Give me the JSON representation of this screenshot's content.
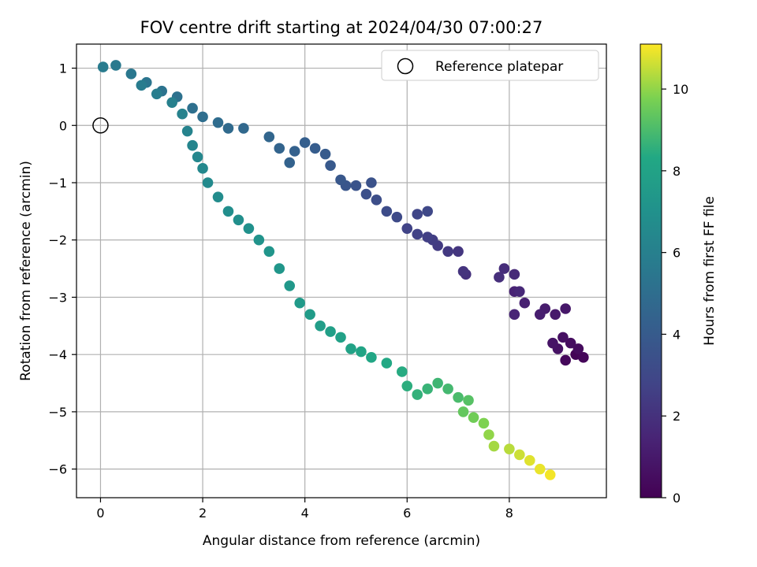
{
  "chart_data": {
    "type": "scatter",
    "title": "FOV centre drift starting at 2024/04/30 07:00:27",
    "xlabel": "Angular distance from reference (arcmin)",
    "ylabel": "Rotation from reference (arcmin)",
    "xlim": [
      -0.47,
      9.9
    ],
    "ylim": [
      -6.5,
      1.42
    ],
    "xticks": [
      0,
      2,
      4,
      6,
      8
    ],
    "yticks": [
      1,
      0,
      -1,
      -2,
      -3,
      -4,
      -5,
      -6
    ],
    "grid": true,
    "legend": {
      "placement": "top-right",
      "entries": [
        "Reference platepar"
      ]
    },
    "reference_point": {
      "x": 0,
      "y": 0
    },
    "colorbar": {
      "label": "Hours from first FF file",
      "range": [
        0,
        11.1
      ],
      "ticks": [
        0,
        2,
        4,
        6,
        8,
        10
      ],
      "colormap": "viridis"
    },
    "series": [
      {
        "points": [
          {
            "x": 9.3,
            "y": -4.0,
            "c": 0.1
          },
          {
            "x": 9.45,
            "y": -4.05,
            "c": 0.2
          },
          {
            "x": 9.1,
            "y": -4.1,
            "c": 0.3
          },
          {
            "x": 9.35,
            "y": -3.9,
            "c": 0.4
          },
          {
            "x": 9.2,
            "y": -3.8,
            "c": 0.5
          },
          {
            "x": 9.05,
            "y": -3.7,
            "c": 0.6
          },
          {
            "x": 8.95,
            "y": -3.9,
            "c": 0.7
          },
          {
            "x": 8.85,
            "y": -3.8,
            "c": 0.8
          },
          {
            "x": 9.1,
            "y": -3.2,
            "c": 0.9
          },
          {
            "x": 8.9,
            "y": -3.3,
            "c": 1.0
          },
          {
            "x": 8.7,
            "y": -3.2,
            "c": 1.1
          },
          {
            "x": 8.6,
            "y": -3.3,
            "c": 1.2
          },
          {
            "x": 8.3,
            "y": -3.1,
            "c": 1.3
          },
          {
            "x": 8.1,
            "y": -2.9,
            "c": 1.4
          },
          {
            "x": 8.1,
            "y": -3.3,
            "c": 1.5
          },
          {
            "x": 8.2,
            "y": -2.9,
            "c": 1.6
          },
          {
            "x": 8.1,
            "y": -2.6,
            "c": 1.7
          },
          {
            "x": 7.9,
            "y": -2.5,
            "c": 1.8
          },
          {
            "x": 7.8,
            "y": -2.65,
            "c": 1.9
          },
          {
            "x": 7.15,
            "y": -2.6,
            "c": 2.0
          },
          {
            "x": 7.1,
            "y": -2.55,
            "c": 2.1
          },
          {
            "x": 7.0,
            "y": -2.2,
            "c": 2.2
          },
          {
            "x": 6.8,
            "y": -2.2,
            "c": 2.3
          },
          {
            "x": 6.6,
            "y": -2.1,
            "c": 2.4
          },
          {
            "x": 6.5,
            "y": -2.0,
            "c": 2.5
          },
          {
            "x": 6.4,
            "y": -1.95,
            "c": 2.6
          },
          {
            "x": 6.2,
            "y": -1.9,
            "c": 2.7
          },
          {
            "x": 6.0,
            "y": -1.8,
            "c": 2.8
          },
          {
            "x": 6.2,
            "y": -1.55,
            "c": 2.9
          },
          {
            "x": 6.4,
            "y": -1.5,
            "c": 3.0
          },
          {
            "x": 5.8,
            "y": -1.6,
            "c": 3.1
          },
          {
            "x": 5.6,
            "y": -1.5,
            "c": 3.2
          },
          {
            "x": 5.4,
            "y": -1.3,
            "c": 3.3
          },
          {
            "x": 5.2,
            "y": -1.2,
            "c": 3.4
          },
          {
            "x": 5.3,
            "y": -1.0,
            "c": 3.5
          },
          {
            "x": 5.0,
            "y": -1.05,
            "c": 3.6
          },
          {
            "x": 4.8,
            "y": -1.05,
            "c": 3.7
          },
          {
            "x": 4.7,
            "y": -0.95,
            "c": 3.8
          },
          {
            "x": 4.5,
            "y": -0.7,
            "c": 3.9
          },
          {
            "x": 4.4,
            "y": -0.5,
            "c": 4.0
          },
          {
            "x": 4.2,
            "y": -0.4,
            "c": 4.1
          },
          {
            "x": 4.0,
            "y": -0.3,
            "c": 4.2
          },
          {
            "x": 3.8,
            "y": -0.45,
            "c": 4.3
          },
          {
            "x": 3.7,
            "y": -0.65,
            "c": 4.4
          },
          {
            "x": 3.5,
            "y": -0.4,
            "c": 4.5
          },
          {
            "x": 3.3,
            "y": -0.2,
            "c": 4.6
          },
          {
            "x": 2.8,
            "y": -0.05,
            "c": 4.7
          },
          {
            "x": 2.5,
            "y": -0.05,
            "c": 4.8
          },
          {
            "x": 2.3,
            "y": 0.05,
            "c": 4.9
          },
          {
            "x": 2.0,
            "y": 0.15,
            "c": 5.0
          },
          {
            "x": 1.8,
            "y": 0.3,
            "c": 5.1
          },
          {
            "x": 1.5,
            "y": 0.5,
            "c": 5.2
          },
          {
            "x": 1.2,
            "y": 0.6,
            "c": 5.3
          },
          {
            "x": 0.9,
            "y": 0.75,
            "c": 5.4
          },
          {
            "x": 0.6,
            "y": 0.9,
            "c": 5.5
          },
          {
            "x": 0.3,
            "y": 1.05,
            "c": 5.6
          },
          {
            "x": 0.05,
            "y": 1.02,
            "c": 5.7
          },
          {
            "x": 0.8,
            "y": 0.7,
            "c": 5.8
          },
          {
            "x": 1.1,
            "y": 0.55,
            "c": 5.9
          },
          {
            "x": 1.4,
            "y": 0.4,
            "c": 6.0
          },
          {
            "x": 1.6,
            "y": 0.2,
            "c": 6.1
          },
          {
            "x": 1.7,
            "y": -0.1,
            "c": 6.2
          },
          {
            "x": 1.8,
            "y": -0.35,
            "c": 6.3
          },
          {
            "x": 1.9,
            "y": -0.55,
            "c": 6.4
          },
          {
            "x": 2.0,
            "y": -0.75,
            "c": 6.5
          },
          {
            "x": 2.1,
            "y": -1.0,
            "c": 6.6
          },
          {
            "x": 2.3,
            "y": -1.25,
            "c": 6.7
          },
          {
            "x": 2.5,
            "y": -1.5,
            "c": 6.8
          },
          {
            "x": 2.7,
            "y": -1.65,
            "c": 6.9
          },
          {
            "x": 2.9,
            "y": -1.8,
            "c": 7.0
          },
          {
            "x": 3.1,
            "y": -2.0,
            "c": 7.1
          },
          {
            "x": 3.3,
            "y": -2.2,
            "c": 7.2
          },
          {
            "x": 3.5,
            "y": -2.5,
            "c": 7.3
          },
          {
            "x": 3.7,
            "y": -2.8,
            "c": 7.4
          },
          {
            "x": 3.9,
            "y": -3.1,
            "c": 7.5
          },
          {
            "x": 4.1,
            "y": -3.3,
            "c": 7.6
          },
          {
            "x": 4.3,
            "y": -3.5,
            "c": 7.7
          },
          {
            "x": 4.5,
            "y": -3.6,
            "c": 7.8
          },
          {
            "x": 4.7,
            "y": -3.7,
            "c": 7.9
          },
          {
            "x": 4.9,
            "y": -3.9,
            "c": 8.0
          },
          {
            "x": 5.1,
            "y": -3.95,
            "c": 8.1
          },
          {
            "x": 5.3,
            "y": -4.05,
            "c": 8.2
          },
          {
            "x": 5.6,
            "y": -4.15,
            "c": 8.3
          },
          {
            "x": 5.9,
            "y": -4.3,
            "c": 8.4
          },
          {
            "x": 6.0,
            "y": -4.55,
            "c": 8.5
          },
          {
            "x": 6.2,
            "y": -4.7,
            "c": 8.6
          },
          {
            "x": 6.4,
            "y": -4.6,
            "c": 8.7
          },
          {
            "x": 6.6,
            "y": -4.5,
            "c": 8.8
          },
          {
            "x": 6.8,
            "y": -4.6,
            "c": 8.9
          },
          {
            "x": 7.0,
            "y": -4.75,
            "c": 9.0
          },
          {
            "x": 7.2,
            "y": -4.8,
            "c": 9.2
          },
          {
            "x": 7.1,
            "y": -5.0,
            "c": 9.4
          },
          {
            "x": 7.3,
            "y": -5.1,
            "c": 9.6
          },
          {
            "x": 7.5,
            "y": -5.2,
            "c": 9.8
          },
          {
            "x": 7.6,
            "y": -5.4,
            "c": 10.0
          },
          {
            "x": 7.7,
            "y": -5.6,
            "c": 10.2
          },
          {
            "x": 8.0,
            "y": -5.65,
            "c": 10.4
          },
          {
            "x": 8.2,
            "y": -5.75,
            "c": 10.6
          },
          {
            "x": 8.4,
            "y": -5.85,
            "c": 10.8
          },
          {
            "x": 8.6,
            "y": -6.0,
            "c": 10.9
          },
          {
            "x": 8.8,
            "y": -6.1,
            "c": 11.0
          }
        ]
      }
    ]
  }
}
